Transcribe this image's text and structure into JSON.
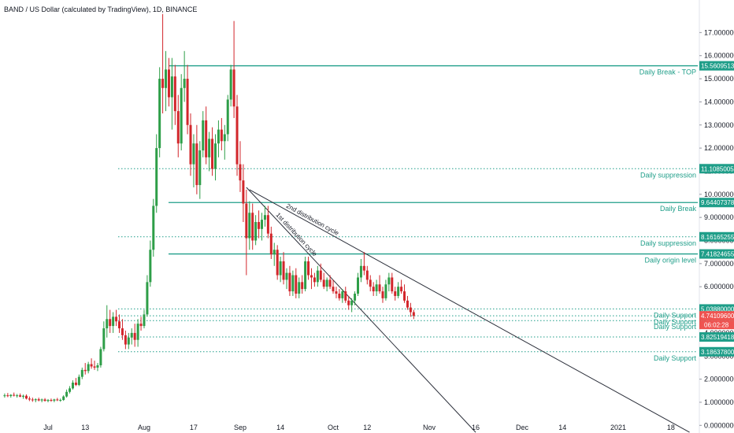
{
  "header": {
    "title": "BAND / US Dollar (calculated by TradingView), 1D, BINANCE"
  },
  "colors": {
    "up": "#26a69a",
    "up_body": "#2e9e48",
    "down": "#ef5350",
    "down_body": "#d2262b",
    "level": "#1f9e89",
    "trend": "#2a2e39",
    "price_badge": "#ef5350",
    "countdown_badge": "#ef5350"
  },
  "chart_data": {
    "type": "candlestick",
    "title": "BAND / US Dollar (calculated by TradingView), 1D, BINANCE",
    "ylim": [
      -0.3,
      17.8
    ],
    "y_ticks": [
      "0.00000000",
      "1.00000000",
      "2.00000000",
      "3.00000000",
      "4.00000000",
      "5.00000000",
      "6.00000000",
      "7.00000000",
      "8.00000000",
      "9.00000000",
      "10.00000000",
      "11.00000000",
      "12.00000000",
      "13.00000000",
      "14.00000000",
      "15.00000000",
      "16.00000000",
      "17.00000000"
    ],
    "x_ticks": [
      {
        "label": "Jul",
        "date": "2020-07-01"
      },
      {
        "label": "13",
        "date": "2020-07-13"
      },
      {
        "label": "Aug",
        "date": "2020-08-01"
      },
      {
        "label": "17",
        "date": "2020-08-17"
      },
      {
        "label": "Sep",
        "date": "2020-09-01"
      },
      {
        "label": "14",
        "date": "2020-09-14"
      },
      {
        "label": "Oct",
        "date": "2020-10-01"
      },
      {
        "label": "12",
        "date": "2020-10-12"
      },
      {
        "label": "Nov",
        "date": "2020-11-01"
      },
      {
        "label": "16",
        "date": "2020-11-16"
      },
      {
        "label": "Dec",
        "date": "2020-12-01"
      },
      {
        "label": "14",
        "date": "2020-12-14"
      },
      {
        "label": "2021",
        "date": "2021-01-01"
      },
      {
        "label": "18",
        "date": "2021-01-18"
      }
    ],
    "candles": [
      {
        "date": "2020-06-17",
        "o": 1.28,
        "h": 1.38,
        "l": 1.2,
        "c": 1.3
      },
      {
        "date": "2020-06-18",
        "o": 1.3,
        "h": 1.4,
        "l": 1.22,
        "c": 1.27
      },
      {
        "date": "2020-06-19",
        "o": 1.27,
        "h": 1.35,
        "l": 1.2,
        "c": 1.32
      },
      {
        "date": "2020-06-20",
        "o": 1.32,
        "h": 1.42,
        "l": 1.25,
        "c": 1.29
      },
      {
        "date": "2020-06-21",
        "o": 1.29,
        "h": 1.36,
        "l": 1.2,
        "c": 1.3
      },
      {
        "date": "2020-06-22",
        "o": 1.3,
        "h": 1.38,
        "l": 1.22,
        "c": 1.24
      },
      {
        "date": "2020-06-23",
        "o": 1.24,
        "h": 1.33,
        "l": 1.15,
        "c": 1.28
      },
      {
        "date": "2020-06-24",
        "o": 1.28,
        "h": 1.34,
        "l": 1.12,
        "c": 1.16
      },
      {
        "date": "2020-06-25",
        "o": 1.16,
        "h": 1.25,
        "l": 1.05,
        "c": 1.12
      },
      {
        "date": "2020-06-26",
        "o": 1.12,
        "h": 1.2,
        "l": 1.02,
        "c": 1.09
      },
      {
        "date": "2020-06-27",
        "o": 1.09,
        "h": 1.17,
        "l": 1.0,
        "c": 1.13
      },
      {
        "date": "2020-06-28",
        "o": 1.13,
        "h": 1.2,
        "l": 1.04,
        "c": 1.08
      },
      {
        "date": "2020-06-29",
        "o": 1.08,
        "h": 1.16,
        "l": 1.0,
        "c": 1.12
      },
      {
        "date": "2020-06-30",
        "o": 1.12,
        "h": 1.18,
        "l": 1.03,
        "c": 1.06
      },
      {
        "date": "2020-07-01",
        "o": 1.06,
        "h": 1.14,
        "l": 1.0,
        "c": 1.1
      },
      {
        "date": "2020-07-02",
        "o": 1.1,
        "h": 1.16,
        "l": 1.02,
        "c": 1.07
      },
      {
        "date": "2020-07-03",
        "o": 1.07,
        "h": 1.15,
        "l": 1.0,
        "c": 1.12
      },
      {
        "date": "2020-07-04",
        "o": 1.12,
        "h": 1.19,
        "l": 1.05,
        "c": 1.09
      },
      {
        "date": "2020-07-05",
        "o": 1.09,
        "h": 1.16,
        "l": 1.02,
        "c": 1.1
      },
      {
        "date": "2020-07-06",
        "o": 1.1,
        "h": 1.3,
        "l": 1.06,
        "c": 1.25
      },
      {
        "date": "2020-07-07",
        "o": 1.25,
        "h": 1.55,
        "l": 1.2,
        "c": 1.45
      },
      {
        "date": "2020-07-08",
        "o": 1.45,
        "h": 1.7,
        "l": 1.38,
        "c": 1.6
      },
      {
        "date": "2020-07-09",
        "o": 1.6,
        "h": 1.95,
        "l": 1.55,
        "c": 1.85
      },
      {
        "date": "2020-07-10",
        "o": 1.85,
        "h": 2.05,
        "l": 1.7,
        "c": 1.75
      },
      {
        "date": "2020-07-11",
        "o": 1.75,
        "h": 2.2,
        "l": 1.7,
        "c": 2.1
      },
      {
        "date": "2020-07-12",
        "o": 2.1,
        "h": 2.5,
        "l": 2.0,
        "c": 2.4
      },
      {
        "date": "2020-07-13",
        "o": 2.4,
        "h": 2.7,
        "l": 2.2,
        "c": 2.35
      },
      {
        "date": "2020-07-14",
        "o": 2.35,
        "h": 2.75,
        "l": 2.25,
        "c": 2.65
      },
      {
        "date": "2020-07-15",
        "o": 2.65,
        "h": 2.9,
        "l": 2.45,
        "c": 2.55
      },
      {
        "date": "2020-07-16",
        "o": 2.55,
        "h": 2.8,
        "l": 2.4,
        "c": 2.5
      },
      {
        "date": "2020-07-17",
        "o": 2.5,
        "h": 2.7,
        "l": 2.35,
        "c": 2.6
      },
      {
        "date": "2020-07-18",
        "o": 2.6,
        "h": 3.4,
        "l": 2.5,
        "c": 3.3
      },
      {
        "date": "2020-07-19",
        "o": 3.3,
        "h": 4.5,
        "l": 3.2,
        "c": 4.2
      },
      {
        "date": "2020-07-20",
        "o": 4.2,
        "h": 5.2,
        "l": 3.8,
        "c": 4.6
      },
      {
        "date": "2020-07-21",
        "o": 4.6,
        "h": 5.0,
        "l": 4.0,
        "c": 4.3
      },
      {
        "date": "2020-07-22",
        "o": 4.3,
        "h": 4.9,
        "l": 4.0,
        "c": 4.7
      },
      {
        "date": "2020-07-23",
        "o": 4.7,
        "h": 5.0,
        "l": 4.3,
        "c": 4.5
      },
      {
        "date": "2020-07-24",
        "o": 4.5,
        "h": 4.8,
        "l": 4.0,
        "c": 4.2
      },
      {
        "date": "2020-07-25",
        "o": 4.2,
        "h": 4.6,
        "l": 3.7,
        "c": 3.9
      },
      {
        "date": "2020-07-26",
        "o": 3.9,
        "h": 4.1,
        "l": 3.3,
        "c": 3.5
      },
      {
        "date": "2020-07-27",
        "o": 3.5,
        "h": 4.0,
        "l": 3.3,
        "c": 3.8
      },
      {
        "date": "2020-07-28",
        "o": 3.8,
        "h": 4.2,
        "l": 3.5,
        "c": 4.0
      },
      {
        "date": "2020-07-29",
        "o": 4.0,
        "h": 4.4,
        "l": 3.4,
        "c": 3.7
      },
      {
        "date": "2020-07-30",
        "o": 3.7,
        "h": 4.6,
        "l": 3.4,
        "c": 4.4
      },
      {
        "date": "2020-07-31",
        "o": 4.4,
        "h": 4.7,
        "l": 4.1,
        "c": 4.3
      },
      {
        "date": "2020-08-01",
        "o": 4.3,
        "h": 5.0,
        "l": 4.2,
        "c": 4.8
      },
      {
        "date": "2020-08-02",
        "o": 4.8,
        "h": 6.5,
        "l": 4.7,
        "c": 6.2
      },
      {
        "date": "2020-08-03",
        "o": 6.2,
        "h": 8.0,
        "l": 6.0,
        "c": 7.6
      },
      {
        "date": "2020-08-04",
        "o": 7.6,
        "h": 9.8,
        "l": 7.3,
        "c": 9.5
      },
      {
        "date": "2020-08-05",
        "o": 9.5,
        "h": 12.6,
        "l": 9.2,
        "c": 12.0
      },
      {
        "date": "2020-08-06",
        "o": 12.0,
        "h": 15.5,
        "l": 11.6,
        "c": 15.0
      },
      {
        "date": "2020-08-07",
        "o": 15.0,
        "h": 17.8,
        "l": 13.5,
        "c": 14.6
      },
      {
        "date": "2020-08-08",
        "o": 14.6,
        "h": 16.2,
        "l": 13.6,
        "c": 15.4
      },
      {
        "date": "2020-08-09",
        "o": 15.4,
        "h": 15.9,
        "l": 13.8,
        "c": 14.2
      },
      {
        "date": "2020-08-10",
        "o": 14.2,
        "h": 15.9,
        "l": 12.8,
        "c": 15.1
      },
      {
        "date": "2020-08-11",
        "o": 15.1,
        "h": 15.6,
        "l": 13.0,
        "c": 13.6
      },
      {
        "date": "2020-08-12",
        "o": 13.6,
        "h": 14.3,
        "l": 11.6,
        "c": 12.2
      },
      {
        "date": "2020-08-13",
        "o": 12.2,
        "h": 15.2,
        "l": 11.9,
        "c": 14.6
      },
      {
        "date": "2020-08-14",
        "o": 14.6,
        "h": 16.2,
        "l": 14.0,
        "c": 15.0
      },
      {
        "date": "2020-08-15",
        "o": 15.0,
        "h": 15.6,
        "l": 12.6,
        "c": 13.0
      },
      {
        "date": "2020-08-16",
        "o": 13.0,
        "h": 13.5,
        "l": 10.8,
        "c": 11.3
      },
      {
        "date": "2020-08-17",
        "o": 11.3,
        "h": 12.6,
        "l": 10.3,
        "c": 12.2
      },
      {
        "date": "2020-08-18",
        "o": 12.2,
        "h": 13.0,
        "l": 10.0,
        "c": 10.4
      },
      {
        "date": "2020-08-19",
        "o": 10.4,
        "h": 12.3,
        "l": 9.8,
        "c": 11.9
      },
      {
        "date": "2020-08-20",
        "o": 11.9,
        "h": 13.6,
        "l": 11.6,
        "c": 13.2
      },
      {
        "date": "2020-08-21",
        "o": 13.2,
        "h": 13.8,
        "l": 11.3,
        "c": 11.6
      },
      {
        "date": "2020-08-22",
        "o": 11.6,
        "h": 12.7,
        "l": 11.0,
        "c": 12.4
      },
      {
        "date": "2020-08-23",
        "o": 12.4,
        "h": 12.9,
        "l": 10.8,
        "c": 11.1
      },
      {
        "date": "2020-08-24",
        "o": 11.1,
        "h": 12.6,
        "l": 10.6,
        "c": 12.2
      },
      {
        "date": "2020-08-25",
        "o": 12.2,
        "h": 13.2,
        "l": 11.6,
        "c": 12.8
      },
      {
        "date": "2020-08-26",
        "o": 12.8,
        "h": 13.3,
        "l": 11.9,
        "c": 12.3
      },
      {
        "date": "2020-08-27",
        "o": 12.3,
        "h": 13.0,
        "l": 11.5,
        "c": 12.6
      },
      {
        "date": "2020-08-28",
        "o": 12.6,
        "h": 14.3,
        "l": 12.3,
        "c": 14.1
      },
      {
        "date": "2020-08-29",
        "o": 14.1,
        "h": 15.6,
        "l": 13.8,
        "c": 15.4
      },
      {
        "date": "2020-08-30",
        "o": 15.4,
        "h": 17.5,
        "l": 13.3,
        "c": 13.8
      },
      {
        "date": "2020-08-31",
        "o": 13.8,
        "h": 14.3,
        "l": 10.8,
        "c": 11.3
      },
      {
        "date": "2020-09-01",
        "o": 11.3,
        "h": 12.3,
        "l": 10.1,
        "c": 10.6
      },
      {
        "date": "2020-09-02",
        "o": 10.6,
        "h": 11.3,
        "l": 8.8,
        "c": 9.6
      },
      {
        "date": "2020-09-03",
        "o": 9.6,
        "h": 10.2,
        "l": 6.5,
        "c": 8.1
      },
      {
        "date": "2020-09-04",
        "o": 8.1,
        "h": 9.7,
        "l": 7.6,
        "c": 9.2
      },
      {
        "date": "2020-09-05",
        "o": 9.2,
        "h": 9.6,
        "l": 7.6,
        "c": 8.0
      },
      {
        "date": "2020-09-06",
        "o": 8.0,
        "h": 9.1,
        "l": 7.8,
        "c": 8.8
      },
      {
        "date": "2020-09-07",
        "o": 8.8,
        "h": 9.3,
        "l": 8.1,
        "c": 8.5
      },
      {
        "date": "2020-09-08",
        "o": 8.5,
        "h": 9.2,
        "l": 8.0,
        "c": 8.9
      },
      {
        "date": "2020-09-09",
        "o": 8.9,
        "h": 9.5,
        "l": 8.6,
        "c": 9.1
      },
      {
        "date": "2020-09-10",
        "o": 9.1,
        "h": 9.5,
        "l": 8.1,
        "c": 8.3
      },
      {
        "date": "2020-09-11",
        "o": 8.3,
        "h": 8.6,
        "l": 7.2,
        "c": 7.4
      },
      {
        "date": "2020-09-12",
        "o": 7.4,
        "h": 7.9,
        "l": 6.9,
        "c": 7.6
      },
      {
        "date": "2020-09-13",
        "o": 7.6,
        "h": 7.8,
        "l": 6.3,
        "c": 6.5
      },
      {
        "date": "2020-09-14",
        "o": 6.5,
        "h": 7.3,
        "l": 6.2,
        "c": 7.1
      },
      {
        "date": "2020-09-15",
        "o": 7.1,
        "h": 7.5,
        "l": 6.1,
        "c": 6.3
      },
      {
        "date": "2020-09-16",
        "o": 6.3,
        "h": 6.8,
        "l": 5.9,
        "c": 6.6
      },
      {
        "date": "2020-09-17",
        "o": 6.6,
        "h": 6.9,
        "l": 5.6,
        "c": 5.8
      },
      {
        "date": "2020-09-18",
        "o": 5.8,
        "h": 6.7,
        "l": 5.6,
        "c": 6.5
      },
      {
        "date": "2020-09-19",
        "o": 6.5,
        "h": 6.8,
        "l": 5.5,
        "c": 5.7
      },
      {
        "date": "2020-09-20",
        "o": 5.7,
        "h": 6.4,
        "l": 5.5,
        "c": 6.2
      },
      {
        "date": "2020-09-21",
        "o": 6.2,
        "h": 6.5,
        "l": 5.7,
        "c": 5.9
      },
      {
        "date": "2020-09-22",
        "o": 5.9,
        "h": 7.3,
        "l": 5.8,
        "c": 7.1
      },
      {
        "date": "2020-09-23",
        "o": 7.1,
        "h": 7.3,
        "l": 6.3,
        "c": 6.5
      },
      {
        "date": "2020-09-24",
        "o": 6.5,
        "h": 6.8,
        "l": 5.9,
        "c": 6.4
      },
      {
        "date": "2020-09-25",
        "o": 6.4,
        "h": 6.6,
        "l": 6.0,
        "c": 6.2
      },
      {
        "date": "2020-09-26",
        "o": 6.2,
        "h": 6.9,
        "l": 6.0,
        "c": 6.7
      },
      {
        "date": "2020-09-27",
        "o": 6.7,
        "h": 7.0,
        "l": 6.2,
        "c": 6.3
      },
      {
        "date": "2020-09-28",
        "o": 6.3,
        "h": 6.6,
        "l": 5.9,
        "c": 6.0
      },
      {
        "date": "2020-09-29",
        "o": 6.0,
        "h": 6.4,
        "l": 5.8,
        "c": 6.3
      },
      {
        "date": "2020-09-30",
        "o": 6.3,
        "h": 6.5,
        "l": 5.9,
        "c": 6.0
      },
      {
        "date": "2020-10-01",
        "o": 6.0,
        "h": 6.3,
        "l": 5.7,
        "c": 5.8
      },
      {
        "date": "2020-10-02",
        "o": 5.8,
        "h": 6.0,
        "l": 5.5,
        "c": 5.7
      },
      {
        "date": "2020-10-03",
        "o": 5.7,
        "h": 5.9,
        "l": 5.4,
        "c": 5.5
      },
      {
        "date": "2020-10-04",
        "o": 5.5,
        "h": 5.9,
        "l": 5.3,
        "c": 5.8
      },
      {
        "date": "2020-10-05",
        "o": 5.8,
        "h": 6.0,
        "l": 5.3,
        "c": 5.4
      },
      {
        "date": "2020-10-06",
        "o": 5.4,
        "h": 5.6,
        "l": 5.0,
        "c": 5.2
      },
      {
        "date": "2020-10-07",
        "o": 5.2,
        "h": 5.5,
        "l": 4.9,
        "c": 5.4
      },
      {
        "date": "2020-10-08",
        "o": 5.4,
        "h": 5.8,
        "l": 5.2,
        "c": 5.7
      },
      {
        "date": "2020-10-09",
        "o": 5.7,
        "h": 6.6,
        "l": 5.6,
        "c": 6.4
      },
      {
        "date": "2020-10-10",
        "o": 6.4,
        "h": 7.2,
        "l": 6.2,
        "c": 6.9
      },
      {
        "date": "2020-10-11",
        "o": 6.9,
        "h": 7.5,
        "l": 6.5,
        "c": 6.7
      },
      {
        "date": "2020-10-12",
        "o": 6.7,
        "h": 6.9,
        "l": 6.1,
        "c": 6.3
      },
      {
        "date": "2020-10-13",
        "o": 6.3,
        "h": 6.5,
        "l": 5.8,
        "c": 6.0
      },
      {
        "date": "2020-10-14",
        "o": 6.0,
        "h": 6.2,
        "l": 5.6,
        "c": 5.8
      },
      {
        "date": "2020-10-15",
        "o": 5.8,
        "h": 6.3,
        "l": 5.6,
        "c": 6.1
      },
      {
        "date": "2020-10-16",
        "o": 6.1,
        "h": 6.5,
        "l": 5.7,
        "c": 5.8
      },
      {
        "date": "2020-10-17",
        "o": 5.8,
        "h": 6.0,
        "l": 5.3,
        "c": 5.5
      },
      {
        "date": "2020-10-18",
        "o": 5.5,
        "h": 6.3,
        "l": 5.4,
        "c": 6.1
      },
      {
        "date": "2020-10-19",
        "o": 6.1,
        "h": 6.6,
        "l": 5.8,
        "c": 6.4
      },
      {
        "date": "2020-10-20",
        "o": 6.4,
        "h": 6.6,
        "l": 5.7,
        "c": 5.8
      },
      {
        "date": "2020-10-21",
        "o": 5.8,
        "h": 6.0,
        "l": 5.4,
        "c": 5.6
      },
      {
        "date": "2020-10-22",
        "o": 5.6,
        "h": 6.2,
        "l": 5.5,
        "c": 6.0
      },
      {
        "date": "2020-10-23",
        "o": 6.0,
        "h": 6.3,
        "l": 5.7,
        "c": 5.8
      },
      {
        "date": "2020-10-24",
        "o": 5.8,
        "h": 6.1,
        "l": 5.3,
        "c": 5.4
      },
      {
        "date": "2020-10-25",
        "o": 5.4,
        "h": 5.6,
        "l": 5.0,
        "c": 5.1
      },
      {
        "date": "2020-10-26",
        "o": 5.1,
        "h": 5.3,
        "l": 4.7,
        "c": 4.9
      },
      {
        "date": "2020-10-27",
        "o": 4.9,
        "h": 5.0,
        "l": 4.6,
        "c": 4.74
      }
    ],
    "levels": [
      {
        "price": 15.56095138,
        "badge": "15.56095138",
        "label": "Daily Break - TOP",
        "style": "solid"
      },
      {
        "price": 11.10850053,
        "badge": "11.10850053",
        "label": "Daily suppression",
        "style": "dotted"
      },
      {
        "price": 9.64407378,
        "badge": "9.64407378",
        "label": "Daily Break",
        "style": "solid"
      },
      {
        "price": 8.16165255,
        "badge": "8.16165255",
        "label": "Daily suppression",
        "style": "dotted"
      },
      {
        "price": 7.41824655,
        "badge": "7.41824655",
        "label": "Daily origin level",
        "style": "solid"
      },
      {
        "price": 5.038,
        "badge": "5.03880000",
        "label": "Daily Support",
        "style": "dotted"
      },
      {
        "price": 4.741096,
        "badge": "",
        "label": "Daily Support",
        "style": "dotted"
      },
      {
        "price": 4.53457134,
        "badge": "4.53457134",
        "label": "Daily Support",
        "style": "dotted"
      },
      {
        "price": 3.82519418,
        "badge": "3.82519418",
        "label": "",
        "style": "dotted"
      },
      {
        "price": 3.186378,
        "badge": "3.18637800",
        "label": "Daily Support",
        "style": "dotted"
      }
    ],
    "last_price": {
      "value": "4.74109600",
      "price": 4.741096,
      "countdown": "06:02:28"
    },
    "trendlines": [
      {
        "label": "1st distribution cycle",
        "from": {
          "date": "2020-09-03",
          "price": 10.3
        },
        "to": {
          "date": "2020-11-16",
          "price": -0.3
        }
      },
      {
        "label": "2nd distribution cycle",
        "from": {
          "date": "2020-09-04",
          "price": 10.2
        },
        "to": {
          "date": "2021-01-24",
          "price": -0.3
        }
      }
    ]
  }
}
